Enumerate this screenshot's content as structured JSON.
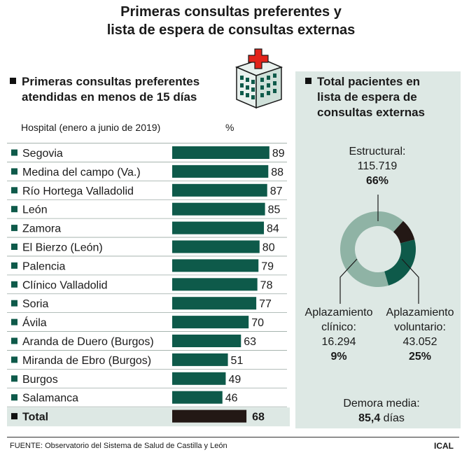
{
  "title_line1": "Primeras consultas preferentes y",
  "title_line2": "lista de espera de consultas externas",
  "left_title_line1": "Primeras consultas preferentes",
  "left_title_line2": "atendidas en menos de 15 días",
  "col_hospital": "Hospital (enero a junio de 2019)",
  "col_pct": "%",
  "right_title_line1": "Total pacientes en",
  "right_title_line2": "lista de espera de",
  "right_title_line3": "consultas externas",
  "source": "FUENTE: Observatorio del Sistema de Salud de Castilla y León",
  "credit": "ICAL",
  "icon": "hospital-building-icon",
  "colors": {
    "bar": "#0e5a4a",
    "total_bar": "#231815",
    "panel": "#dde8e4",
    "donut_estructural": "#8fb3a5",
    "donut_voluntario": "#0e5a4a",
    "donut_clinico": "#231815"
  },
  "chart_data": [
    {
      "type": "bar",
      "orientation": "horizontal",
      "categories": [
        "Segovia",
        "Medina del campo (Va.)",
        "Río Hortega Valladolid",
        "León",
        "Zamora",
        "El Bierzo (León)",
        "Palencia",
        "Clínico Valladolid",
        "Soria",
        "Ávila",
        "Aranda de Duero (Burgos)",
        "Miranda de Ebro (Burgos)",
        "Burgos",
        "Salamanca"
      ],
      "values": [
        89,
        88,
        87,
        85,
        84,
        80,
        79,
        78,
        77,
        70,
        63,
        51,
        49,
        46
      ],
      "total_label": "Total",
      "total_value": 68,
      "xlim": [
        0,
        100
      ]
    },
    {
      "type": "pie",
      "style": "donut",
      "slices": [
        {
          "label": "Estructural:",
          "value": 115719,
          "value_text": "115.719",
          "pct_text": "66%",
          "pct": 66
        },
        {
          "label_line1": "Aplazamiento",
          "label_line2": "voluntario:",
          "value": 43052,
          "value_text": "43.052",
          "pct_text": "25%",
          "pct": 25
        },
        {
          "label_line1": "Aplazamiento",
          "label_line2": "clínico:",
          "value": 16294,
          "value_text": "16.294",
          "pct_text": "9%",
          "pct": 9
        }
      ],
      "demora_label": "Demora media:",
      "demora_value": "85,4",
      "demora_unit": "días"
    }
  ]
}
